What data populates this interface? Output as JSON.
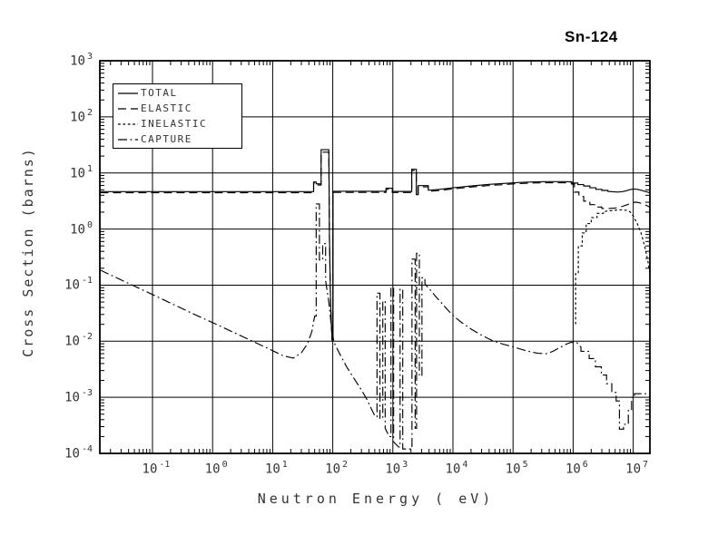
{
  "title": "Sn-124",
  "axes": {
    "x": {
      "label": "Neutron Energy ( eV)",
      "scale": "log",
      "min": 0.0135,
      "max": 19000000.0,
      "tick_exponents": [
        -1,
        0,
        1,
        2,
        3,
        4,
        5,
        6,
        7
      ]
    },
    "y": {
      "label": "Cross Section (barns)",
      "scale": "log",
      "min": 0.0001,
      "max": 1000.0,
      "tick_exponents": [
        3,
        2,
        1,
        0,
        -1,
        -2,
        -3,
        -4
      ]
    }
  },
  "legend": {
    "items": [
      {
        "label": "TOTAL",
        "dash": "none"
      },
      {
        "label": "ELASTIC",
        "dash": "9 5"
      },
      {
        "label": "INELASTIC",
        "dash": "2.8 2.6"
      },
      {
        "label": "CAPTURE",
        "dash": "10 3.5 1.8 3.5"
      }
    ]
  },
  "colors": {
    "line": "#000000",
    "frame": "#000000",
    "grid": "#000000",
    "background": "#ffffff",
    "title": "#000000"
  },
  "chart_data": {
    "type": "line",
    "title": "Sn-124",
    "xlabel": "Neutron Energy ( eV)",
    "ylabel": "Cross Section (barns)",
    "x_scale": "log",
    "y_scale": "log",
    "xlim": [
      0.0135,
      19000000.0
    ],
    "ylim": [
      0.0001,
      1000.0
    ],
    "grid": true,
    "legend_position": "upper-left",
    "series": [
      {
        "name": "TOTAL",
        "style": "solid",
        "points": [
          [
            0.0135,
            4.65
          ],
          [
            20,
            4.65
          ],
          [
            48,
            4.65
          ],
          [
            48,
            6.9
          ],
          [
            53,
            6.9
          ],
          [
            53,
            6.4
          ],
          [
            64,
            6.4
          ],
          [
            64,
            26
          ],
          [
            86,
            26
          ],
          [
            88,
            0.8
          ],
          [
            92,
            0.05
          ],
          [
            97,
            0.0115
          ],
          [
            101,
            0.0115
          ],
          [
            101,
            4.72
          ],
          [
            770,
            4.72
          ],
          [
            770,
            5.35
          ],
          [
            980,
            5.35
          ],
          [
            980,
            4.68
          ],
          [
            2060,
            4.68
          ],
          [
            2060,
            11.6
          ],
          [
            2460,
            11.6
          ],
          [
            2460,
            4.1
          ],
          [
            2640,
            4.1
          ],
          [
            2640,
            5.95
          ],
          [
            3890,
            5.95
          ],
          [
            3890,
            4.92
          ],
          [
            6000,
            5.1
          ],
          [
            10000.0,
            5.45
          ],
          [
            20000.0,
            5.85
          ],
          [
            40000.0,
            6.25
          ],
          [
            70000.0,
            6.5
          ],
          [
            120000.0,
            6.75
          ],
          [
            200000.0,
            6.9
          ],
          [
            350000.0,
            7.0
          ],
          [
            700000.0,
            7.0
          ],
          [
            950000.0,
            6.95
          ],
          [
            950000.0,
            6.6
          ],
          [
            1200000.0,
            6.6
          ],
          [
            1200000.0,
            6.2
          ],
          [
            1500000.0,
            6.2
          ],
          [
            1500000.0,
            5.85
          ],
          [
            1900000.0,
            5.85
          ],
          [
            1900000.0,
            5.45
          ],
          [
            2400000.0,
            5.45
          ],
          [
            2400000.0,
            5.1
          ],
          [
            3000000.0,
            5.1
          ],
          [
            3000000.0,
            4.88
          ],
          [
            3800000.0,
            4.88
          ],
          [
            3800000.0,
            4.68
          ],
          [
            4800000.0,
            4.6
          ],
          [
            5500000.0,
            4.56
          ],
          [
            6500000.0,
            4.62
          ],
          [
            7500000.0,
            4.78
          ],
          [
            8500000.0,
            4.98
          ],
          [
            9500000.0,
            5.12
          ],
          [
            10500000.0,
            5.17
          ],
          [
            12000000.0,
            5.07
          ],
          [
            14000000.0,
            4.87
          ],
          [
            16000000.0,
            4.67
          ],
          [
            18000000.0,
            4.5
          ],
          [
            19000000.0,
            4.42
          ]
        ]
      },
      {
        "name": "ELASTIC",
        "style": "long-dash",
        "points": [
          [
            0.0135,
            4.44
          ],
          [
            20,
            4.44
          ],
          [
            48,
            4.44
          ],
          [
            48,
            6.6
          ],
          [
            53,
            6.6
          ],
          [
            53,
            6.1
          ],
          [
            64,
            6.1
          ],
          [
            64,
            23.5
          ],
          [
            86,
            23.5
          ],
          [
            88,
            0.72
          ],
          [
            92,
            0.046
          ],
          [
            97,
            0.0105
          ],
          [
            101,
            0.0105
          ],
          [
            101,
            4.5
          ],
          [
            770,
            4.5
          ],
          [
            770,
            5.1
          ],
          [
            980,
            5.1
          ],
          [
            980,
            4.47
          ],
          [
            2060,
            4.47
          ],
          [
            2060,
            11.0
          ],
          [
            2460,
            11.0
          ],
          [
            2460,
            3.9
          ],
          [
            2640,
            3.9
          ],
          [
            2640,
            5.65
          ],
          [
            3890,
            5.65
          ],
          [
            3890,
            4.7
          ],
          [
            6000,
            4.87
          ],
          [
            10000.0,
            5.2
          ],
          [
            20000.0,
            5.6
          ],
          [
            40000.0,
            5.97
          ],
          [
            70000.0,
            6.2
          ],
          [
            120000.0,
            6.45
          ],
          [
            200000.0,
            6.6
          ],
          [
            350000.0,
            6.68
          ],
          [
            700000.0,
            6.68
          ],
          [
            950000.0,
            6.6
          ],
          [
            950000.0,
            6.3
          ],
          [
            1050000.0,
            6.3
          ],
          [
            1050000.0,
            4.55
          ],
          [
            1250000.0,
            4.55
          ],
          [
            1250000.0,
            3.8
          ],
          [
            1500000.0,
            3.8
          ],
          [
            1500000.0,
            3.15
          ],
          [
            1900000.0,
            3.15
          ],
          [
            1900000.0,
            2.72
          ],
          [
            2400000.0,
            2.72
          ],
          [
            2400000.0,
            2.47
          ],
          [
            3000000.0,
            2.47
          ],
          [
            3000000.0,
            2.32
          ],
          [
            4000000.0,
            2.32
          ],
          [
            5000000.0,
            2.37
          ],
          [
            6500000.0,
            2.52
          ],
          [
            8000000.0,
            2.72
          ],
          [
            9500000.0,
            2.92
          ],
          [
            11000000.0,
            3.02
          ],
          [
            13000000.0,
            2.92
          ],
          [
            15000000.0,
            2.77
          ],
          [
            17500000.0,
            2.57
          ],
          [
            19000000.0,
            2.45
          ]
        ]
      },
      {
        "name": "INELASTIC",
        "style": "short-dash",
        "points": [
          [
            1100000.0,
            0.02
          ],
          [
            1100000.0,
            0.16
          ],
          [
            1220000.0,
            0.16
          ],
          [
            1220000.0,
            0.5
          ],
          [
            1420000.0,
            0.5
          ],
          [
            1420000.0,
            0.85
          ],
          [
            1650000.0,
            0.85
          ],
          [
            1650000.0,
            1.25
          ],
          [
            2000000.0,
            1.25
          ],
          [
            2000000.0,
            1.6
          ],
          [
            2500000.0,
            1.6
          ],
          [
            2500000.0,
            1.9
          ],
          [
            3200000.0,
            1.9
          ],
          [
            3200000.0,
            2.05
          ],
          [
            4000000.0,
            2.1
          ],
          [
            5000000.0,
            2.17
          ],
          [
            6500000.0,
            2.2
          ],
          [
            8000000.0,
            2.15
          ],
          [
            9000000.0,
            2.0
          ],
          [
            10000000.0,
            1.7
          ],
          [
            11500000.0,
            1.3
          ],
          [
            13500000.0,
            0.85
          ],
          [
            15500000.0,
            0.5
          ],
          [
            17500000.0,
            0.27
          ],
          [
            18800000.0,
            0.17
          ],
          [
            19000000.0,
            0.15
          ]
        ]
      },
      {
        "name": "CAPTURE",
        "style": "dash-dot",
        "points": [
          [
            0.0135,
            0.185
          ],
          [
            0.0253,
            0.135
          ],
          [
            0.1,
            0.068
          ],
          [
            0.5,
            0.03
          ],
          [
            1,
            0.0215
          ],
          [
            3,
            0.0124
          ],
          [
            8,
            0.0076
          ],
          [
            15,
            0.0055
          ],
          [
            22,
            0.005
          ],
          [
            30,
            0.0062
          ],
          [
            38,
            0.009
          ],
          [
            45,
            0.015
          ],
          [
            50,
            0.028
          ],
          [
            53,
            0.028
          ],
          [
            53,
            2.8
          ],
          [
            60,
            2.8
          ],
          [
            60,
            0.28
          ],
          [
            68,
            0.28
          ],
          [
            68,
            0.55
          ],
          [
            76,
            0.55
          ],
          [
            76,
            0.12
          ],
          [
            86,
            0.05
          ],
          [
            95,
            0.018
          ],
          [
            105,
            0.0095
          ],
          [
            130,
            0.006
          ],
          [
            170,
            0.0035
          ],
          [
            230,
            0.0021
          ],
          [
            300,
            0.00135
          ],
          [
            370,
            0.00092
          ],
          [
            440,
            0.00062
          ],
          [
            510,
            0.00045
          ],
          [
            545,
            0.00045
          ],
          [
            545,
            0.072
          ],
          [
            610,
            0.072
          ],
          [
            610,
            0.00042
          ],
          [
            680,
            0.00042
          ],
          [
            680,
            0.052
          ],
          [
            745,
            0.052
          ],
          [
            745,
            0.00028
          ],
          [
            870,
            0.0002
          ],
          [
            930,
            0.0002
          ],
          [
            930,
            0.1
          ],
          [
            1030,
            0.1
          ],
          [
            1030,
            0.00016
          ],
          [
            1250,
            0.00013
          ],
          [
            1320,
            0.00013
          ],
          [
            1320,
            0.085
          ],
          [
            1460,
            0.085
          ],
          [
            1460,
            0.00012
          ],
          [
            1800,
            0.00012
          ],
          [
            2080,
            0.00012
          ],
          [
            2080,
            0.29
          ],
          [
            2350,
            0.29
          ],
          [
            2350,
            0.00028
          ],
          [
            2480,
            0.00028
          ],
          [
            2480,
            0.37
          ],
          [
            2760,
            0.37
          ],
          [
            2760,
            0.0024
          ],
          [
            3050,
            0.0024
          ],
          [
            3050,
            0.135
          ],
          [
            3420,
            0.135
          ],
          [
            3420,
            0.105
          ],
          [
            4200,
            0.082
          ],
          [
            5200,
            0.062
          ],
          [
            6600,
            0.047
          ],
          [
            8200,
            0.036
          ],
          [
            10500.0,
            0.0275
          ],
          [
            14000.0,
            0.0215
          ],
          [
            20000.0,
            0.0165
          ],
          [
            30000.0,
            0.0128
          ],
          [
            45000.0,
            0.0103
          ],
          [
            65000.0,
            0.009
          ],
          [
            90000.0,
            0.0082
          ],
          [
            130000.0,
            0.0073
          ],
          [
            180000.0,
            0.0066
          ],
          [
            260000.0,
            0.0061
          ],
          [
            360000.0,
            0.006
          ],
          [
            460000.0,
            0.0066
          ],
          [
            600000.0,
            0.0077
          ],
          [
            760000.0,
            0.0088
          ],
          [
            900000.0,
            0.0095
          ],
          [
            1150000.0,
            0.0096
          ],
          [
            1150000.0,
            0.0095
          ],
          [
            1350000.0,
            0.0078
          ],
          [
            1350000.0,
            0.0066
          ],
          [
            1850000.0,
            0.0066
          ],
          [
            1850000.0,
            0.0049
          ],
          [
            2350000.0,
            0.0049
          ],
          [
            2350000.0,
            0.0035
          ],
          [
            2950000.0,
            0.0035
          ],
          [
            2950000.0,
            0.0025
          ],
          [
            3600000.0,
            0.0025
          ],
          [
            3600000.0,
            0.00175
          ],
          [
            4400000.0,
            0.00175
          ],
          [
            4400000.0,
            0.00122
          ],
          [
            5200000.0,
            0.00122
          ],
          [
            5200000.0,
            0.00086
          ],
          [
            5900000.0,
            0.00086
          ],
          [
            5900000.0,
            0.00027
          ],
          [
            6900000.0,
            0.00027
          ],
          [
            6900000.0,
            0.00033
          ],
          [
            8300000.0,
            0.00033
          ],
          [
            8300000.0,
            0.0006
          ],
          [
            9400000.0,
            0.0006
          ],
          [
            9400000.0,
            0.001
          ],
          [
            10500000.0,
            0.001
          ],
          [
            10500000.0,
            0.00116
          ],
          [
            19000000.0,
            0.00116
          ]
        ]
      }
    ]
  }
}
